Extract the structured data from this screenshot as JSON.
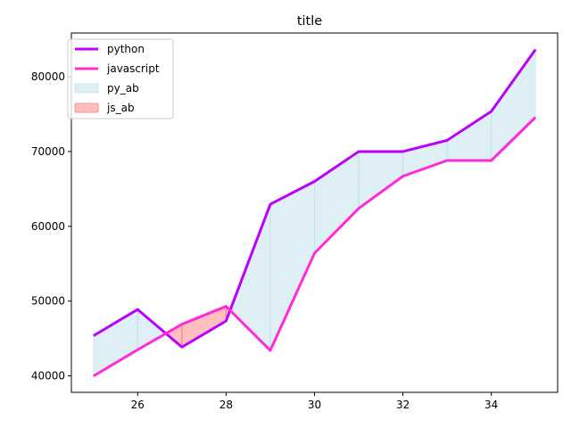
{
  "chart_data": {
    "type": "line",
    "title": "title",
    "xlabel": "",
    "ylabel": "",
    "x": [
      25,
      26,
      27,
      28,
      29,
      30,
      31,
      32,
      33,
      34,
      35
    ],
    "series": [
      {
        "name": "python",
        "color": "#bb00ff",
        "values": [
          45372,
          48876,
          43850,
          47341,
          62947,
          66000,
          70000,
          70000,
          71496,
          75370,
          83640
        ]
      },
      {
        "name": "javascript",
        "color": "#ff2ad8",
        "values": [
          39975,
          43500,
          46900,
          49300,
          43400,
          56400,
          62400,
          66700,
          68800,
          68800,
          74583
        ]
      }
    ],
    "fills": [
      {
        "name": "py_ab",
        "color": "#add8e6",
        "where": "python > javascript"
      },
      {
        "name": "js_ab",
        "color": "#ff6666",
        "where": "javascript > python"
      }
    ],
    "xlim": [
      24.5,
      35.5
    ],
    "ylim": [
      37800,
      85850
    ],
    "xticks": [
      26,
      28,
      30,
      32,
      34
    ],
    "yticks": [
      40000,
      50000,
      60000,
      70000,
      80000
    ],
    "grid": false,
    "legend": "top-left"
  }
}
